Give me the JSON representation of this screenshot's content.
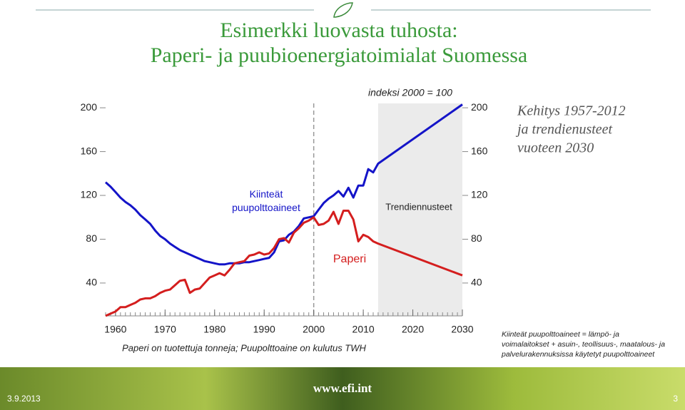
{
  "slide": {
    "title_line1": "Esimerkki luovasta tuhosta:",
    "title_line2": "Paperi- ja puubioenergiatoimialat Suomessa",
    "side_note": [
      "Kehitys 1957-2012",
      "ja  trendienusteet",
      "vuoteen 2030"
    ],
    "definition": [
      "Kiinteät puupolttoaineet = lämpö- ja",
      "voimalaitokset + asuin-, teollisuus-, maatalous- ja",
      "palvelurakennuksissa käytetyt puupolttoaineet"
    ],
    "date": "3.9.2013",
    "url": "www.efi.int",
    "page": "3"
  },
  "chart_data": {
    "type": "line",
    "subtitle": "indeksi 2000 = 100",
    "annotation": "Trendiennusteet",
    "x_axis_label": "Paperi on tuotettuja tonneja; Puupolttoaine on kulutus TWH",
    "x": [
      1958,
      1959,
      1960,
      1961,
      1962,
      1963,
      1964,
      1965,
      1966,
      1967,
      1968,
      1969,
      1970,
      1971,
      1972,
      1973,
      1974,
      1975,
      1976,
      1977,
      1978,
      1979,
      1980,
      1981,
      1982,
      1983,
      1984,
      1985,
      1986,
      1987,
      1988,
      1989,
      1990,
      1991,
      1992,
      1993,
      1994,
      1995,
      1996,
      1997,
      1998,
      1999,
      2000,
      2001,
      2002,
      2003,
      2004,
      2005,
      2006,
      2007,
      2008,
      2009,
      2010,
      2011,
      2012,
      2013,
      2030
    ],
    "series": [
      {
        "name": "Kiinteät puupolttoaineet",
        "color": "#1414c8",
        "values": [
          132,
          128,
          123,
          118,
          114,
          111,
          107,
          102,
          98,
          94,
          88,
          83,
          80,
          76,
          73,
          70,
          68,
          66,
          64,
          62,
          60,
          59,
          58,
          57,
          57,
          58,
          58,
          58,
          59,
          59,
          60,
          61,
          62,
          63,
          68,
          78,
          79,
          84,
          87,
          92,
          99,
          100,
          101,
          107,
          113,
          117,
          120,
          124,
          119,
          127,
          118,
          129,
          129,
          144,
          141,
          149,
          203
        ]
      },
      {
        "name": "Paperi",
        "color": "#d41e1e",
        "values": [
          10,
          12,
          14,
          18,
          18,
          20,
          22,
          25,
          26,
          26,
          28,
          31,
          33,
          34,
          38,
          42,
          43,
          31,
          34,
          35,
          40,
          45,
          47,
          49,
          47,
          52,
          58,
          59,
          60,
          65,
          66,
          68,
          66,
          67,
          72,
          80,
          81,
          77,
          86,
          90,
          95,
          97,
          100,
          93,
          94,
          97,
          105,
          94,
          106,
          106,
          98,
          78,
          84,
          82,
          78,
          76,
          47
        ]
      }
    ],
    "xlim": [
      1958,
      2030
    ],
    "ylim": [
      10,
      204
    ],
    "xticks": [
      1960,
      1970,
      1980,
      1990,
      2000,
      2010,
      2020,
      2030
    ],
    "yticks": [
      40,
      80,
      120,
      160,
      200
    ]
  }
}
